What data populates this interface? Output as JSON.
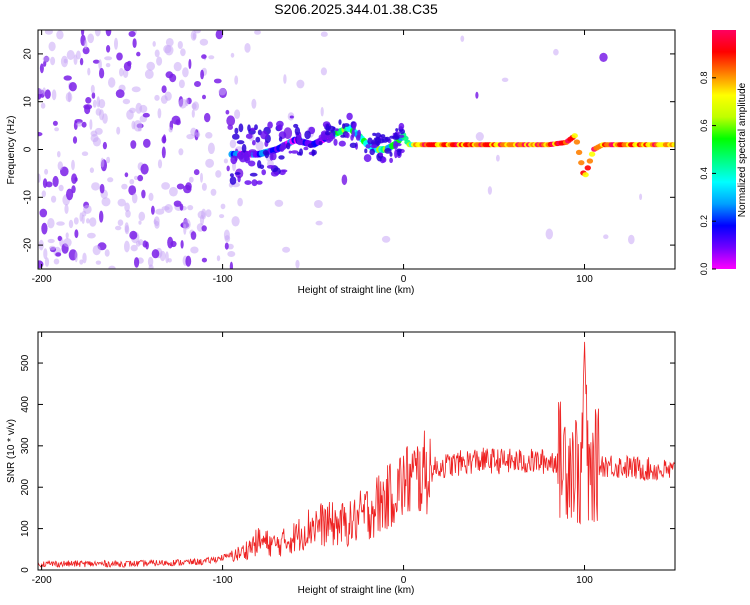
{
  "chart_data": [
    {
      "type": "heatmap",
      "title": "S206.2025.344.01.38.C35",
      "xlabel": "Height of straight line (km)",
      "ylabel": "Frequency (Hz)",
      "xlim": [
        -202,
        150
      ],
      "ylim": [
        -25,
        25
      ],
      "xticks": [
        -200,
        -100,
        0,
        100
      ],
      "yticks": [
        -20,
        -10,
        0,
        10,
        20
      ],
      "colorbar": {
        "label": "Normalized spectral amplitude",
        "range": [
          0,
          1
        ],
        "ticks": [
          0.0,
          0.2,
          0.4,
          0.6,
          0.8
        ],
        "tick_labels": [
          "0.0",
          "0.2",
          "0.4",
          "0.6",
          "0.8"
        ],
        "colors": [
          "#ff00ff",
          "#7000ff",
          "#0000ff",
          "#00a0ff",
          "#00ffff",
          "#00ff80",
          "#00ff00",
          "#c0ff00",
          "#ffff00",
          "#ff8000",
          "#ff0000",
          "#ff0060"
        ]
      },
      "ridge": {
        "x": [
          -90,
          -80,
          -70,
          -60,
          -50,
          -40,
          -30,
          -25,
          -20,
          -15,
          -10,
          -5,
          0,
          3,
          10,
          20,
          40,
          60,
          80,
          90,
          95,
          100,
          105,
          110,
          130,
          150
        ],
        "freq": [
          -1,
          -1,
          0,
          2,
          1,
          3,
          4.5,
          3,
          1,
          0,
          0,
          1,
          3,
          1,
          1,
          1,
          1,
          1,
          1,
          1.5,
          3,
          -6,
          0,
          1,
          1,
          1
        ]
      }
    },
    {
      "type": "line",
      "xlabel": "Height of straight line (km)",
      "ylabel": "SNR (10 * v/v)",
      "xlim": [
        -202,
        150
      ],
      "ylim": [
        0,
        575
      ],
      "xticks": [
        -200,
        -100,
        0,
        100
      ],
      "yticks": [
        0,
        100,
        200,
        300,
        400,
        500
      ],
      "color": "#ee2222",
      "series": [
        {
          "name": "SNR",
          "x": [
            -200,
            -150,
            -110,
            -90,
            -80,
            -70,
            -60,
            -50,
            -40,
            -30,
            -20,
            -10,
            0,
            10,
            20,
            40,
            60,
            80,
            90,
            95,
            98,
            100,
            102,
            105,
            110,
            130,
            150
          ],
          "values": [
            15,
            15,
            20,
            40,
            70,
            60,
            80,
            110,
            110,
            110,
            140,
            170,
            210,
            230,
            250,
            265,
            262,
            262,
            270,
            260,
            200,
            560,
            200,
            250,
            255,
            245,
            238
          ]
        }
      ]
    }
  ]
}
